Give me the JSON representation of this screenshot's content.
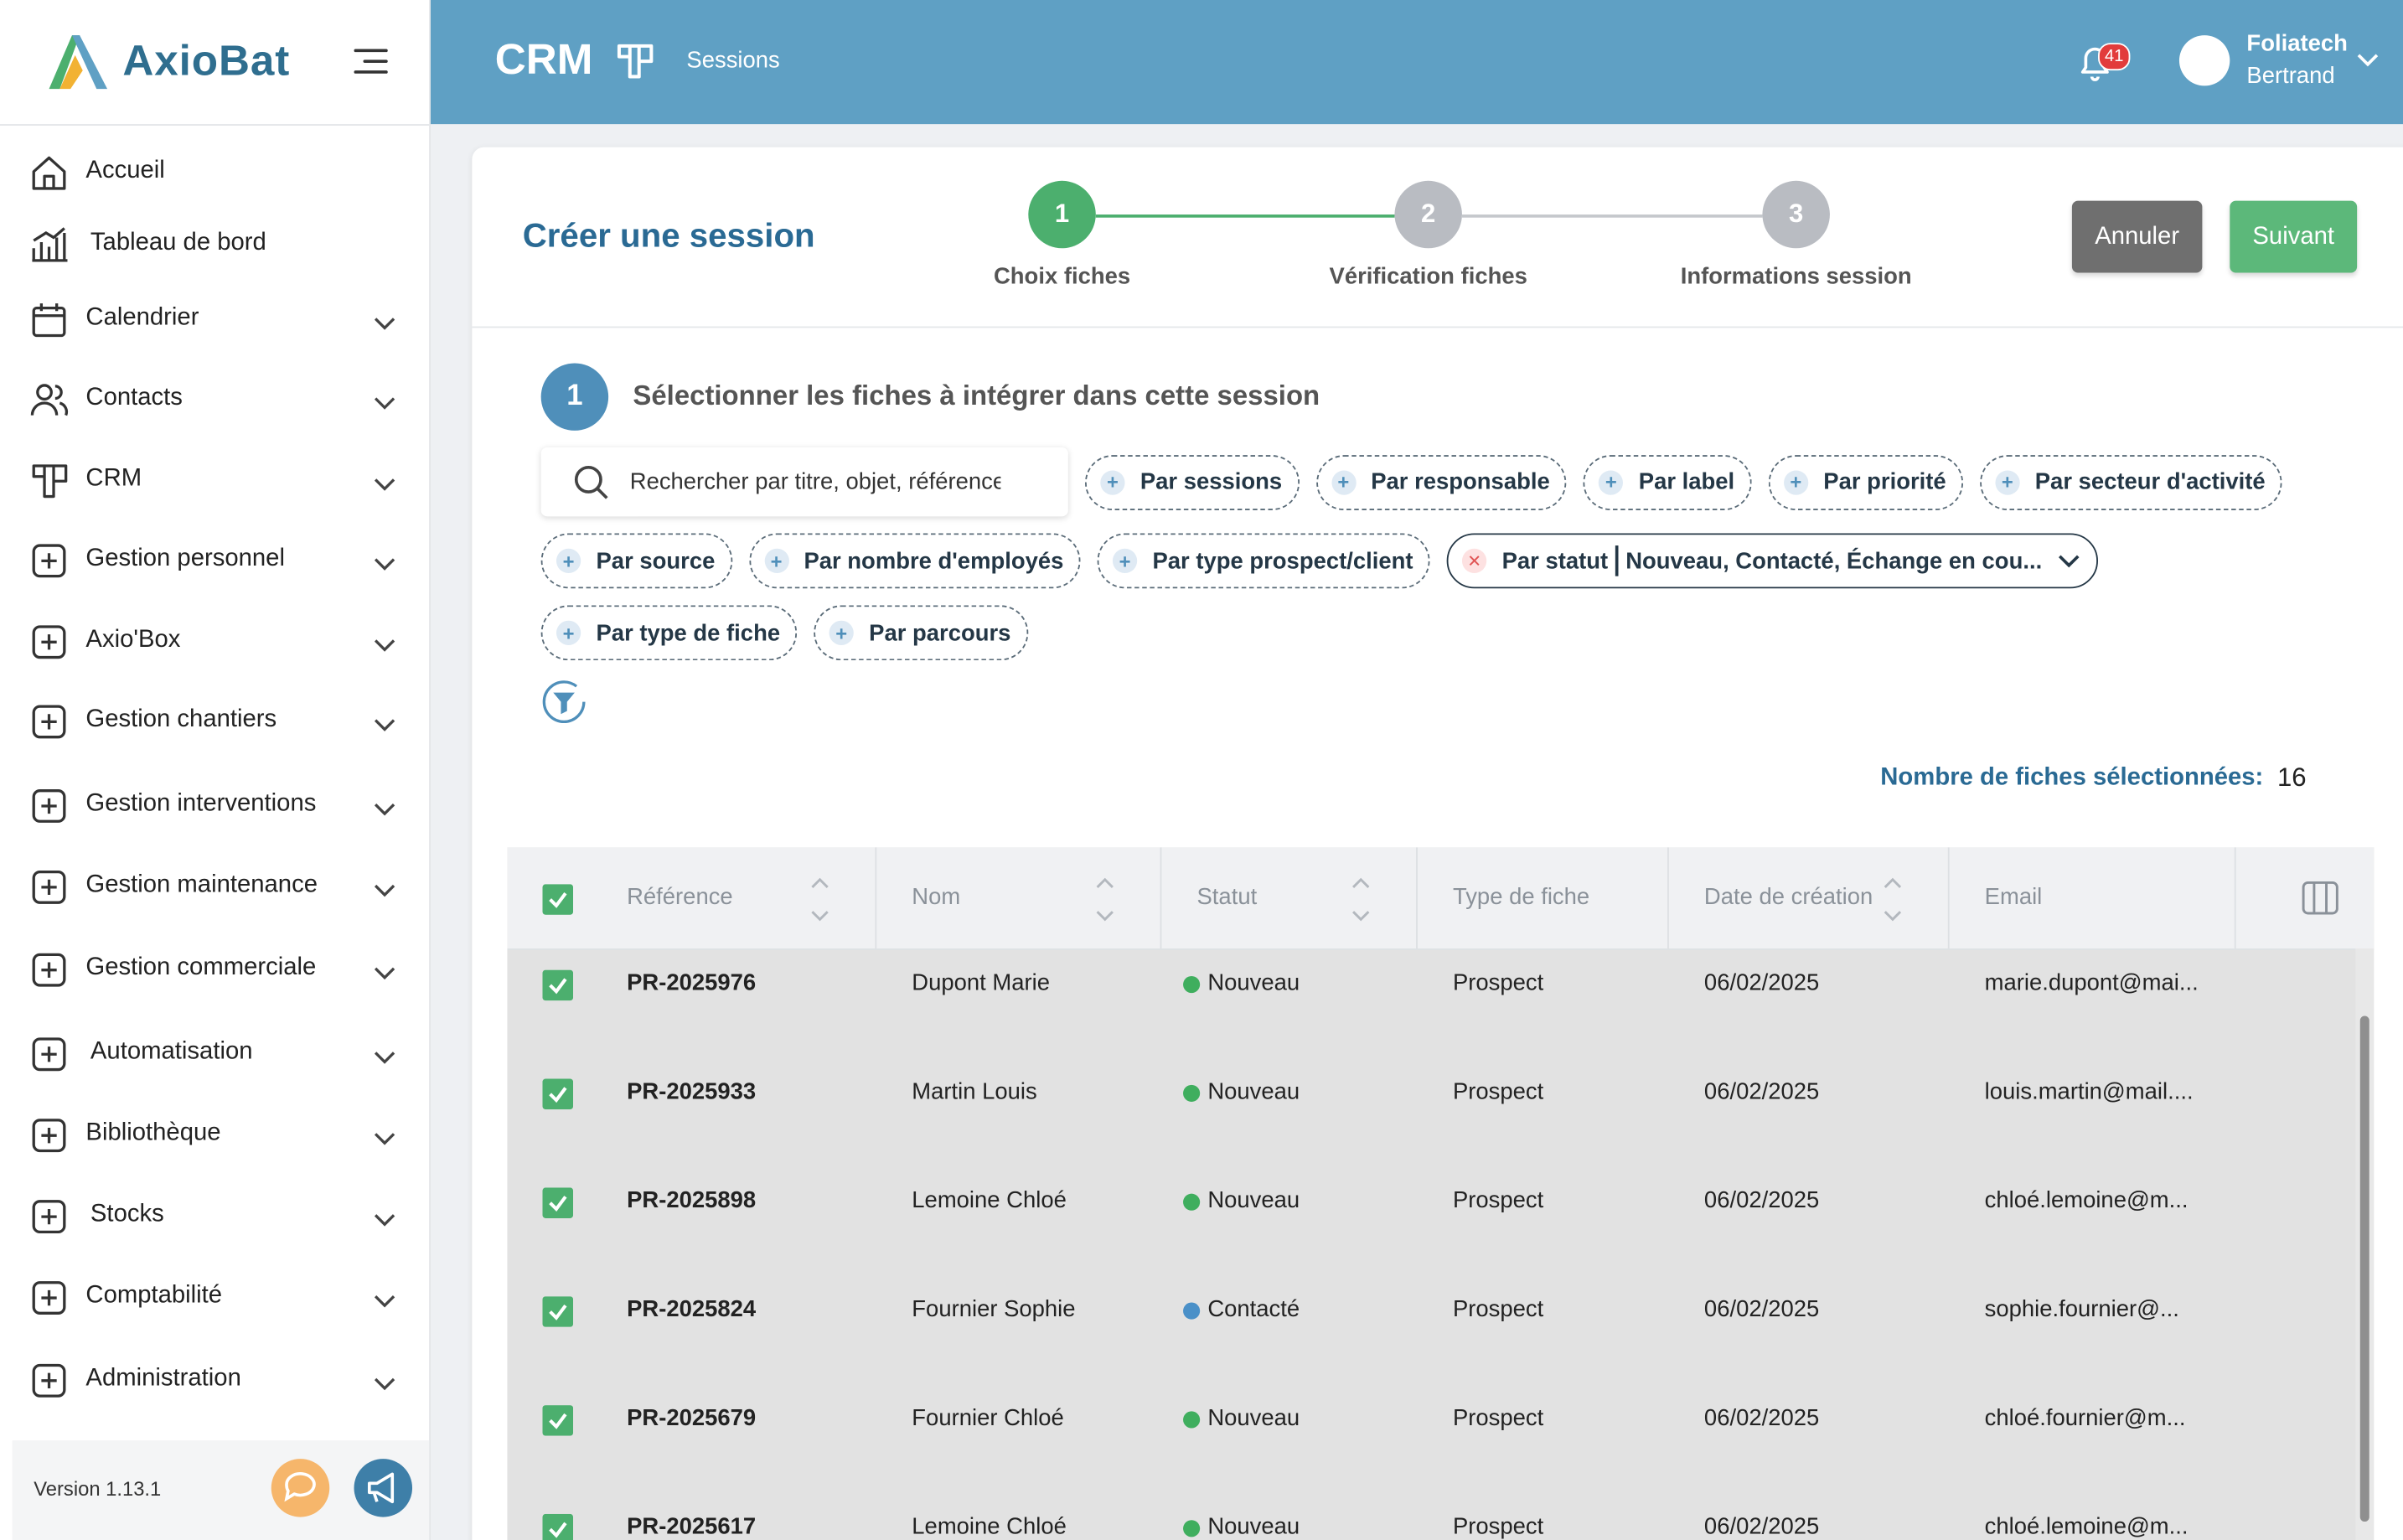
{
  "brand": {
    "name": "AxioBat"
  },
  "header": {
    "module": "CRM",
    "page": "Sessions",
    "notifications": 41,
    "user": {
      "company": "Foliatech",
      "name": "Bertrand"
    }
  },
  "sidebar": {
    "items": [
      {
        "label": "Accueil",
        "expandable": false
      },
      {
        "label": "Tableau de bord",
        "expandable": false
      },
      {
        "label": "Calendrier",
        "expandable": true
      },
      {
        "label": "Contacts",
        "expandable": true
      },
      {
        "label": "CRM",
        "expandable": true
      },
      {
        "label": "Gestion personnel",
        "expandable": true
      },
      {
        "label": "Axio'Box",
        "expandable": true
      },
      {
        "label": "Gestion chantiers",
        "expandable": true
      },
      {
        "label": "Gestion interventions",
        "expandable": true
      },
      {
        "label": "Gestion maintenance",
        "expandable": true
      },
      {
        "label": "Gestion commerciale",
        "expandable": true
      },
      {
        "label": "Automatisation",
        "expandable": true
      },
      {
        "label": "Bibliothèque",
        "expandable": true
      },
      {
        "label": "Stocks",
        "expandable": true
      },
      {
        "label": "Comptabilité",
        "expandable": true
      },
      {
        "label": "Administration",
        "expandable": true
      }
    ],
    "version": "Version 1.13.1"
  },
  "wizard": {
    "title": "Créer une session",
    "steps": [
      {
        "number": 1,
        "label": "Choix fiches",
        "active": true
      },
      {
        "number": 2,
        "label": "Vérification fiches",
        "active": false
      },
      {
        "number": 3,
        "label": "Informations session",
        "active": false
      }
    ],
    "cancel": "Annuler",
    "next": "Suivant"
  },
  "section": {
    "number": 1,
    "title": "Sélectionner les fiches à intégrer dans cette session"
  },
  "search": {
    "placeholder": "Rechercher par titre, objet, référence"
  },
  "filters": [
    {
      "label": "Par sessions"
    },
    {
      "label": "Par responsable"
    },
    {
      "label": "Par label"
    },
    {
      "label": "Par priorité"
    },
    {
      "label": "Par secteur d'activité"
    },
    {
      "label": "Par source"
    },
    {
      "label": "Par nombre d'employés"
    },
    {
      "label": "Par type prospect/client"
    },
    {
      "label": "Par statut",
      "value": "Nouveau, Contacté, Échange en cou...",
      "active": true
    },
    {
      "label": "Par type de fiche"
    },
    {
      "label": "Par parcours"
    }
  ],
  "selection": {
    "label": "Nombre de fiches sélectionnées:",
    "count": 16
  },
  "table": {
    "columns": [
      {
        "label": "Référence",
        "sortable": true
      },
      {
        "label": "Nom",
        "sortable": true
      },
      {
        "label": "Statut",
        "sortable": true
      },
      {
        "label": "Type de fiche",
        "sortable": false
      },
      {
        "label": "Date de création",
        "sortable": true
      },
      {
        "label": "Email",
        "sortable": false
      }
    ],
    "rows": [
      {
        "reference": "PR-2025976",
        "name": "Dupont Marie",
        "status": "Nouveau",
        "status_color": "#3fae5e",
        "type": "Prospect",
        "date": "06/02/2025",
        "email": "marie.dupont@mai..."
      },
      {
        "reference": "PR-2025933",
        "name": "Martin Louis",
        "status": "Nouveau",
        "status_color": "#3fae5e",
        "type": "Prospect",
        "date": "06/02/2025",
        "email": "louis.martin@mail...."
      },
      {
        "reference": "PR-2025898",
        "name": "Lemoine Chloé",
        "status": "Nouveau",
        "status_color": "#3fae5e",
        "type": "Prospect",
        "date": "06/02/2025",
        "email": "chloé.lemoine@m..."
      },
      {
        "reference": "PR-2025824",
        "name": "Fournier Sophie",
        "status": "Contacté",
        "status_color": "#4a90c8",
        "type": "Prospect",
        "date": "06/02/2025",
        "email": "sophie.fournier@..."
      },
      {
        "reference": "PR-2025679",
        "name": "Fournier Chloé",
        "status": "Nouveau",
        "status_color": "#3fae5e",
        "type": "Prospect",
        "date": "06/02/2025",
        "email": "chloé.fournier@m..."
      },
      {
        "reference": "PR-2025617",
        "name": "Lemoine Chloé",
        "status": "Nouveau",
        "status_color": "#3fae5e",
        "type": "Prospect",
        "date": "06/02/2025",
        "email": "chloé.lemoine@m..."
      }
    ]
  }
}
